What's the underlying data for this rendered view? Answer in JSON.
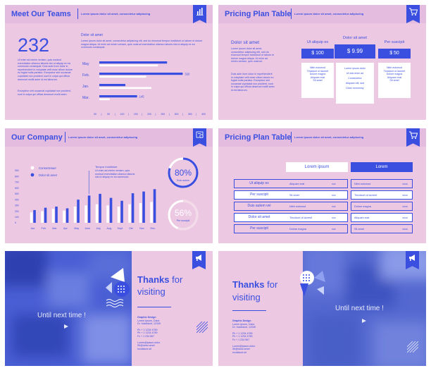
{
  "colors": {
    "accent": "#3a4fe0",
    "pink": "#ecc8e2",
    "header": "#e4bce0",
    "white": "#ffffff",
    "light": "#c8ccf2"
  },
  "s1": {
    "title": "Meet Our Teams",
    "subtitle": "Lorem ipsum dolor sit amet, consectetur adipiscing",
    "icon": "bar-chart-icon",
    "big_number": "232",
    "left_text": "Ut enim ad minim veniam, quis nostrud exercitation ullamco laboris nisi ut aliquip ex ea commodo consequat. Duis aute irure dolor in reprehenderit in voluptate velit esse cillum dolore eu fugiat nulla pariatur. Excepteur sint occaecat cupidatat non proident, sunt in culpa qui officia deserunt mollit anim id est laborum.",
    "left_text2": "Excepteur sint occaecat cupidatat non proident, sunt in culpa qui officia deserunt mollit anim.",
    "right_heading": "Dolor sit amet",
    "right_text": "Lorem ipsum dolor sit amet, consectetur adipiscing elit, sed do eiusmod tempor incididunt ut labore et dolore magna aliqua. Ut enim ad minim veniam, quis nostrud exercitation ullamco laboris nisi ut aliquip ex ea commodo consequat.",
    "chart_data": {
      "type": "bar",
      "orientation": "horizontal",
      "categories": [
        "May",
        "Feb.",
        "Jan.",
        "Mar."
      ],
      "series": [
        {
          "values": [
            260,
            320,
            100,
            145
          ]
        },
        {
          "values": [
            225,
            180,
            200,
            40
          ]
        }
      ],
      "data_labels": [
        "",
        "320",
        "",
        "145"
      ],
      "xlim": [
        0,
        400
      ],
      "ticks": [
        "30",
        "50",
        "100",
        "150",
        "200",
        "250",
        "300",
        "350",
        "400"
      ]
    }
  },
  "s2": {
    "title": "Pricing Plan Table",
    "subtitle": "Lorem ipsum dolor sit amet, consectetur adipiscing",
    "icon": "cart-icon",
    "left_heading": "Dolor sit amet",
    "left_text": "Lorem ipsum dolor sit amet, consectetur adipiscing elit, sed do eiusmod tempor incididunt ut labore et dolore magna aliqua. Ut enim ad minim veniam, quis nostrud.",
    "left_text2": "Duis aute irure dolor in reprehenderit in voluptate velit esse cillum dolore eu fugiat nulla pariatur. Excepteur sint occaecat cupidatat non proident, sunt in culpa qui officia deserunt mollit anim id est laborum.",
    "plans": [
      {
        "name": "Ut aliquip ex",
        "price": "$ 100",
        "features": [
          "Nibh euismod",
          "Tincidunt ut laoreet",
          "Dolore magna",
          "Aliquam erat",
          "Sit amet"
        ]
      },
      {
        "name": "Dolor sit amet",
        "price": "$ 9.99",
        "features": [
          "Lorem ipsum dolor",
          "Ut wisi enim ad",
          "Consectetur",
          "Aliquam elit, sed",
          "Diam nonummy"
        ]
      },
      {
        "name": "Per suscipit",
        "price": "$ 50",
        "features": [
          "Nibh euismod",
          "Tincidunt ut laoreet",
          "Dolore magna",
          "Aliquam erat",
          "Sit amet"
        ]
      }
    ]
  },
  "s3": {
    "title": "Our Company",
    "subtitle": "Lorem ipsum dolor sit amet, consectetur adipiscing",
    "icon": "gear-chart-icon",
    "legend": [
      "Consectetuer",
      "Dolor sit amet"
    ],
    "annotation_title": "Tempor incididunt",
    "annotation_text": "Ut enim ad minim veniam, quis nostrud exercitation ullamco laboris nisi ut aliquip ex ea commodo.",
    "donut1": {
      "value": "80%",
      "label": "Duis autem",
      "fraction": 0.8
    },
    "donut2": {
      "value": "56%",
      "label": "Per suscipit",
      "fraction": 0.56
    },
    "chart_data": {
      "type": "bar",
      "categories": [
        "Jan.",
        "Feb.",
        "Mar.",
        "Apr.",
        "May",
        "June",
        "July",
        "Aug.",
        "Sept.",
        "Oct.",
        "Nov.",
        "Dec."
      ],
      "series": [
        {
          "name": "Consectetuer",
          "values": [
            180,
            200,
            240,
            210,
            280,
            300,
            320,
            300,
            280,
            320,
            340,
            360
          ]
        },
        {
          "name": "Dolor sit amet",
          "values": [
            220,
            260,
            280,
            250,
            400,
            470,
            500,
            430,
            380,
            510,
            540,
            580
          ]
        }
      ],
      "ylim": [
        0,
        900
      ],
      "yticks": [
        "0",
        "100",
        "200",
        "300",
        "400",
        "500",
        "600",
        "700",
        "800",
        "900"
      ]
    }
  },
  "s4": {
    "title": "Pricing Plan Table",
    "subtitle": "Lorem ipsum dolor sit amet, consectetur adipiscing",
    "icon": "cart-icon",
    "col_headers": [
      "Lorem    ipsum",
      "Lorem"
    ],
    "left_rows": [
      {
        "label": "Ut aliquip ex",
        "feature": "Aliquam erat",
        "value": "xxx"
      },
      {
        "label": "Per suscipit",
        "feature": "Sit amet",
        "value": "xxx"
      },
      {
        "label": "Duis autem vel",
        "feature": "Nibh euismod",
        "value": "xxx"
      },
      {
        "label": "Dolor sit amet",
        "feature": "Tincidunt ut laoreet",
        "value": "xxx"
      },
      {
        "label": "Per suscipit",
        "feature": "Dolore magna",
        "value": "xxx"
      }
    ],
    "right_rows": [
      {
        "feature": "Nibh euismod",
        "value": "xxxx"
      },
      {
        "feature": "Tincidunt ut laoreet",
        "value": "xxxx"
      },
      {
        "feature": "Dolore magna",
        "value": "xxxx"
      },
      {
        "feature": "Aliquam erat",
        "value": "xxxx"
      },
      {
        "feature": "Sit amet",
        "value": "xxxx"
      }
    ]
  },
  "s5": {
    "icon": "megaphone-icon",
    "thanks": "Thanks",
    "for": "for",
    "visiting": "visiting",
    "until": "Until next time !",
    "contact_title": "Graphic Design",
    "contact_lines": [
      "Lorem Ipsum, Dolor",
      "Dr. Incididunt, 12345"
    ],
    "phones": [
      "Ph + 1 1234 4789",
      "Ph + 1 1234 4789",
      "Fx + 1 234 567"
    ],
    "emails": [
      "Lorem@ipsum.dolor",
      "Sit@dolor.amet",
      "Incididunt.sit"
    ]
  },
  "s6": {
    "icon": "megaphone-icon",
    "thanks": "Thanks",
    "for": "for",
    "visiting": "visiting",
    "until": "Until next time !",
    "contact_title": "Graphic Design",
    "contact_lines": [
      "Lorem Ipsum, Dolor",
      "Dr. Incididunt, 12345"
    ],
    "phones": [
      "Ph + 1 1234 4789",
      "Ph + 1 1234 4789",
      "Fx + 1 234 567"
    ],
    "emails": [
      "Lorem@ipsum.dolor",
      "Sit@dolor.amet",
      "Incididunt.sit"
    ]
  }
}
